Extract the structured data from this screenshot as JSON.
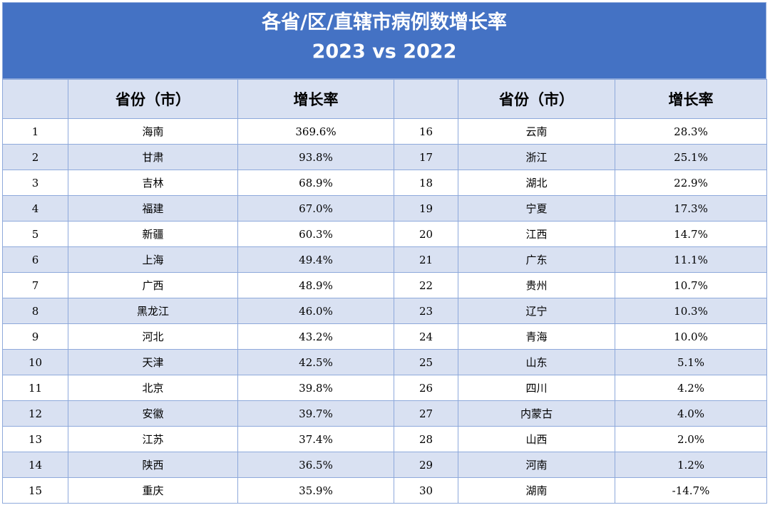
{
  "title": "各省/区/直辖市病例数增长率",
  "subtitle": "2023 vs 2022",
  "headers": {
    "idx": "",
    "province": "省份（市）",
    "rate": "增长率"
  },
  "rows": [
    {
      "left": {
        "idx": "1",
        "province": "海南",
        "rate": "369.6%"
      },
      "right": {
        "idx": "16",
        "province": "云南",
        "rate": "28.3%"
      }
    },
    {
      "left": {
        "idx": "2",
        "province": "甘肃",
        "rate": "93.8%"
      },
      "right": {
        "idx": "17",
        "province": "浙江",
        "rate": "25.1%"
      }
    },
    {
      "left": {
        "idx": "3",
        "province": "吉林",
        "rate": "68.9%"
      },
      "right": {
        "idx": "18",
        "province": "湖北",
        "rate": "22.9%"
      }
    },
    {
      "left": {
        "idx": "4",
        "province": "福建",
        "rate": "67.0%"
      },
      "right": {
        "idx": "19",
        "province": "宁夏",
        "rate": "17.3%"
      }
    },
    {
      "left": {
        "idx": "5",
        "province": "新疆",
        "rate": "60.3%"
      },
      "right": {
        "idx": "20",
        "province": "江西",
        "rate": "14.7%"
      }
    },
    {
      "left": {
        "idx": "6",
        "province": "上海",
        "rate": "49.4%"
      },
      "right": {
        "idx": "21",
        "province": "广东",
        "rate": "11.1%"
      }
    },
    {
      "left": {
        "idx": "7",
        "province": "广西",
        "rate": "48.9%"
      },
      "right": {
        "idx": "22",
        "province": "贵州",
        "rate": "10.7%"
      }
    },
    {
      "left": {
        "idx": "8",
        "province": "黑龙江",
        "rate": "46.0%"
      },
      "right": {
        "idx": "23",
        "province": "辽宁",
        "rate": "10.3%"
      }
    },
    {
      "left": {
        "idx": "9",
        "province": "河北",
        "rate": "43.2%"
      },
      "right": {
        "idx": "24",
        "province": "青海",
        "rate": "10.0%"
      }
    },
    {
      "left": {
        "idx": "10",
        "province": "天津",
        "rate": "42.5%"
      },
      "right": {
        "idx": "25",
        "province": "山东",
        "rate": "5.1%"
      }
    },
    {
      "left": {
        "idx": "11",
        "province": "北京",
        "rate": "39.8%"
      },
      "right": {
        "idx": "26",
        "province": "四川",
        "rate": "4.2%"
      }
    },
    {
      "left": {
        "idx": "12",
        "province": "安徽",
        "rate": "39.7%"
      },
      "right": {
        "idx": "27",
        "province": "内蒙古",
        "rate": "4.0%"
      }
    },
    {
      "left": {
        "idx": "13",
        "province": "江苏",
        "rate": "37.4%"
      },
      "right": {
        "idx": "28",
        "province": "山西",
        "rate": "2.0%"
      }
    },
    {
      "left": {
        "idx": "14",
        "province": "陕西",
        "rate": "36.5%"
      },
      "right": {
        "idx": "29",
        "province": "河南",
        "rate": "1.2%"
      }
    },
    {
      "left": {
        "idx": "15",
        "province": "重庆",
        "rate": "35.9%"
      },
      "right": {
        "idx": "30",
        "province": "湖南",
        "rate": "-14.7%"
      }
    }
  ],
  "colors": {
    "title_bg": "#4472c4",
    "header_bg": "#d9e1f2",
    "alt_row_bg": "#d9e1f2",
    "border": "#8ea9db"
  }
}
